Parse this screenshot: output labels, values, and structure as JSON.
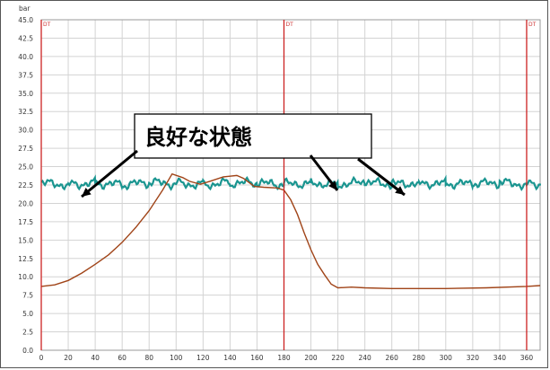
{
  "chart_data": {
    "type": "line",
    "unit_label": "bar",
    "ylim": [
      0,
      45
    ],
    "xlim": [
      0,
      370
    ],
    "y_ticks": [
      "0.0",
      "2.5",
      "5.0",
      "7.5",
      "10.0",
      "12.5",
      "15.0",
      "17.5",
      "20.0",
      "22.5",
      "25.0",
      "27.5",
      "30.0",
      "32.5",
      "35.0",
      "37.5",
      "40.0",
      "42.5",
      "45.0"
    ],
    "x_ticks": [
      "0",
      "20",
      "40",
      "60",
      "80",
      "100",
      "120",
      "140",
      "160",
      "180",
      "200",
      "220",
      "240",
      "260",
      "280",
      "300",
      "320",
      "340",
      "360"
    ],
    "grid": true,
    "markers": [
      {
        "x": 0,
        "label": "DT"
      },
      {
        "x": 180,
        "label": "DT"
      },
      {
        "x": 360,
        "label": "DT"
      }
    ],
    "annotation": "良好な状態",
    "colors": {
      "teal": "#1a9590",
      "brown": "#a04418",
      "marker": "#cc2222",
      "grid": "#d3d3d3"
    },
    "series": [
      {
        "color": "teal",
        "points": [
          [
            0,
            22.7
          ],
          [
            20,
            22.6
          ],
          [
            40,
            22.8
          ],
          [
            60,
            22.5
          ],
          [
            80,
            22.8
          ],
          [
            100,
            22.7
          ],
          [
            120,
            22.6
          ],
          [
            140,
            22.8
          ],
          [
            160,
            22.7
          ],
          [
            180,
            22.6
          ],
          [
            200,
            22.8
          ],
          [
            220,
            22.6
          ],
          [
            240,
            22.8
          ],
          [
            260,
            22.6
          ],
          [
            280,
            22.8
          ],
          [
            300,
            22.7
          ],
          [
            320,
            22.6
          ],
          [
            340,
            22.8
          ],
          [
            360,
            22.6
          ],
          [
            370,
            22.7
          ]
        ]
      },
      {
        "color": "brown",
        "points": [
          [
            0,
            8.7
          ],
          [
            10,
            8.9
          ],
          [
            20,
            9.5
          ],
          [
            30,
            10.5
          ],
          [
            40,
            11.7
          ],
          [
            50,
            13.0
          ],
          [
            60,
            14.7
          ],
          [
            70,
            16.7
          ],
          [
            80,
            19.0
          ],
          [
            90,
            21.8
          ],
          [
            97,
            24.0
          ],
          [
            105,
            23.5
          ],
          [
            110,
            23.0
          ],
          [
            118,
            22.6
          ],
          [
            125,
            23.0
          ],
          [
            135,
            23.6
          ],
          [
            145,
            23.8
          ],
          [
            150,
            23.4
          ],
          [
            158,
            22.3
          ],
          [
            165,
            22.2
          ],
          [
            175,
            22.1
          ],
          [
            180,
            21.8
          ],
          [
            185,
            20.5
          ],
          [
            190,
            18.5
          ],
          [
            195,
            16.0
          ],
          [
            200,
            13.7
          ],
          [
            205,
            11.7
          ],
          [
            210,
            10.3
          ],
          [
            215,
            9.0
          ],
          [
            220,
            8.5
          ],
          [
            230,
            8.6
          ],
          [
            240,
            8.5
          ],
          [
            260,
            8.4
          ],
          [
            280,
            8.4
          ],
          [
            300,
            8.4
          ],
          [
            330,
            8.5
          ],
          [
            360,
            8.7
          ],
          [
            370,
            8.8
          ]
        ]
      }
    ]
  }
}
